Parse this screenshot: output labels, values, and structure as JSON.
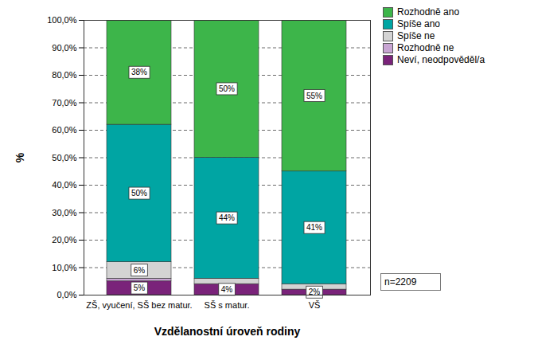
{
  "chart_data": {
    "type": "bar",
    "stacked": true,
    "categories": [
      "ZŠ, vyučení, SŠ bez matur.",
      "SŠ s matur.",
      "VŠ"
    ],
    "series": [
      {
        "name": "Rozhodně ano",
        "color": "#3db54a",
        "values": [
          38,
          50,
          55
        ],
        "value_labels": [
          "38%",
          "50%",
          "55%"
        ]
      },
      {
        "name": "Spíše ano",
        "color": "#00a5a3",
        "values": [
          50,
          44,
          41
        ],
        "value_labels": [
          "50%",
          "44%",
          "41%"
        ]
      },
      {
        "name": "Spíše ne",
        "color": "#d3d3d3",
        "values": [
          6,
          2,
          2
        ],
        "value_labels": [
          "6%",
          null,
          null
        ]
      },
      {
        "name": "Rozhodně ne",
        "color": "#c8a5d3",
        "values": [
          1,
          0,
          0
        ],
        "value_labels": [
          null,
          null,
          null
        ]
      },
      {
        "name": "Neví, neodpověděl/a",
        "color": "#7a237a",
        "values": [
          5,
          4,
          2
        ],
        "value_labels": [
          "5%",
          "4%",
          "2%"
        ]
      }
    ],
    "xlabel": "Vzdělanostní úroveň rodiny",
    "ylabel": "%",
    "ylim": [
      0,
      100
    ],
    "yticks": [
      {
        "value": 0,
        "label": "0,0%"
      },
      {
        "value": 10,
        "label": "10,0%"
      },
      {
        "value": 20,
        "label": "20,0%"
      },
      {
        "value": 30,
        "label": "30,0%"
      },
      {
        "value": 40,
        "label": "40,0%"
      },
      {
        "value": 50,
        "label": "50,0%"
      },
      {
        "value": 60,
        "label": "60,0%"
      },
      {
        "value": 70,
        "label": "70,0%"
      },
      {
        "value": 80,
        "label": "80,0%"
      },
      {
        "value": 90,
        "label": "90,0%"
      },
      {
        "value": 100,
        "label": "100,0%"
      }
    ],
    "grid": true,
    "legend": "right",
    "data_labels": true,
    "annotations": [
      "n=2209"
    ]
  }
}
